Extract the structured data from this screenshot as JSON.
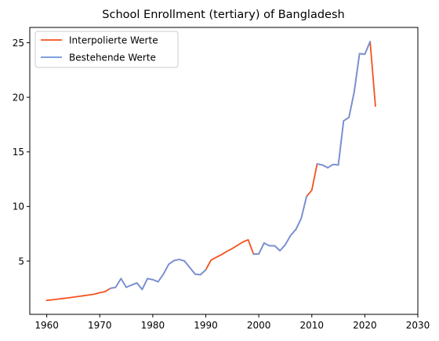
{
  "chart_data": {
    "type": "line",
    "title": "School Enrollment (tertiary) of Bangladesh",
    "xlabel": "",
    "ylabel": "",
    "xlim": [
      1956.8,
      2030
    ],
    "ylim": [
      0.12,
      26.4
    ],
    "xticks": [
      1960,
      1970,
      1980,
      1990,
      2000,
      2010,
      2020,
      2030
    ],
    "yticks": [
      5,
      10,
      15,
      20,
      25
    ],
    "grid": false,
    "legend": {
      "placement": "top-left"
    },
    "series": [
      {
        "name": "Interpolierte Werte",
        "color": "#f4511e",
        "x": [
          1960,
          1961,
          1962,
          1963,
          1964,
          1965,
          1966,
          1967,
          1968,
          1969,
          1970,
          1971,
          1972,
          1973,
          1974,
          1975,
          1976,
          1977,
          1978,
          1979,
          1980,
          1981,
          1982,
          1983,
          1984,
          1985,
          1986,
          1987,
          1988,
          1989,
          1990,
          1991,
          1992,
          1993,
          1994,
          1995,
          1996,
          1997,
          1998,
          1999,
          2000,
          2001,
          2002,
          2003,
          2004,
          2005,
          2006,
          2007,
          2008,
          2009,
          2010,
          2011,
          2012,
          2013,
          2014,
          2015,
          2016,
          2017,
          2018,
          2019,
          2020,
          2021,
          2022
        ],
        "y": [
          1.4,
          1.45,
          1.51,
          1.57,
          1.63,
          1.69,
          1.76,
          1.83,
          1.9,
          1.97,
          2.1,
          2.2,
          2.5,
          2.6,
          3.4,
          2.6,
          2.8,
          3.0,
          2.4,
          3.4,
          3.3,
          3.1,
          3.8,
          4.7,
          5.05,
          5.15,
          5.0,
          4.4,
          3.8,
          3.75,
          4.2,
          5.1,
          5.35,
          5.6,
          5.9,
          6.15,
          6.45,
          6.75,
          6.95,
          5.65,
          5.65,
          6.65,
          6.4,
          6.4,
          5.95,
          6.5,
          7.35,
          7.9,
          8.9,
          10.9,
          11.5,
          13.9,
          13.8,
          13.55,
          13.85,
          13.8,
          17.85,
          18.15,
          20.5,
          24.0,
          23.95,
          25.1,
          19.2
        ]
      },
      {
        "name": "Bestehende Werte",
        "color": "#6f93de",
        "x": [
          1972,
          1973,
          1974,
          1975,
          1976,
          1977,
          1978,
          1979,
          1980,
          1981,
          1982,
          1983,
          1984,
          1985,
          1986,
          1987,
          1988,
          1989,
          1990,
          null,
          1999,
          2000,
          2001,
          2002,
          2003,
          2004,
          2005,
          2006,
          2007,
          2008,
          2009,
          null,
          2011,
          2012,
          2013,
          2014,
          2015,
          2016,
          2017,
          2018,
          2019,
          2020,
          2021
        ],
        "y": [
          2.5,
          2.6,
          3.4,
          2.6,
          2.8,
          3.0,
          2.4,
          3.4,
          3.3,
          3.1,
          3.8,
          4.7,
          5.05,
          5.15,
          5.0,
          4.4,
          3.8,
          3.75,
          4.2,
          null,
          5.65,
          5.65,
          6.65,
          6.4,
          6.4,
          5.95,
          6.5,
          7.35,
          7.9,
          8.9,
          10.9,
          null,
          13.9,
          13.8,
          13.55,
          13.85,
          13.8,
          17.85,
          18.15,
          20.5,
          24.0,
          23.95,
          25.1
        ]
      }
    ]
  }
}
